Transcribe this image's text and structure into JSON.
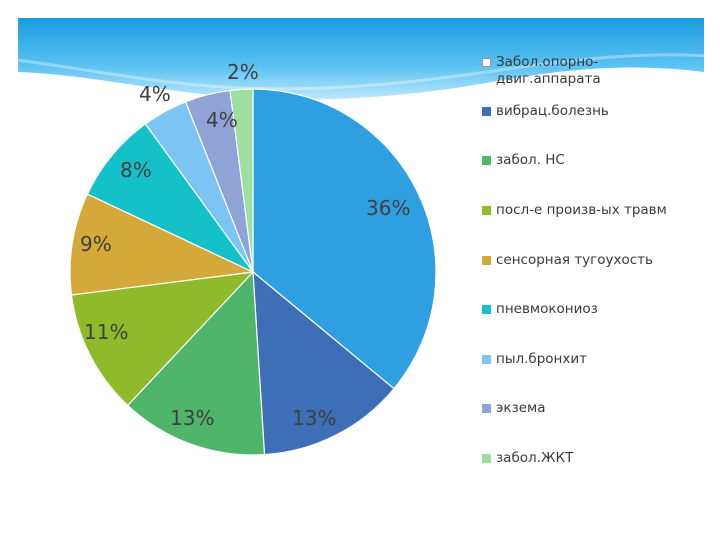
{
  "chart_data": {
    "type": "pie",
    "categories": [
      "Забол.опорно-двиг.аппарата",
      "вибрац.болезнь",
      "забол. НС",
      "посл-е произв-ых травм",
      "сенсорная тугоухость",
      "пневмокониоз",
      "пыл.бронхит",
      "экзема",
      "забол.ЖКТ"
    ],
    "values": [
      36,
      13,
      13,
      11,
      9,
      8,
      4,
      4,
      2
    ],
    "data_labels": [
      "36%",
      "13%",
      "13%",
      "11%",
      "9%",
      "8%",
      "4%",
      "4%",
      "2%"
    ],
    "colors": [
      "#2e9fe0",
      "#3d6fb6",
      "#4fb56b",
      "#8fba2a",
      "#d5a83a",
      "#14c1c8",
      "#7cc4f4",
      "#8fa3d7",
      "#9ddf9f"
    ],
    "legend_position": "right"
  }
}
